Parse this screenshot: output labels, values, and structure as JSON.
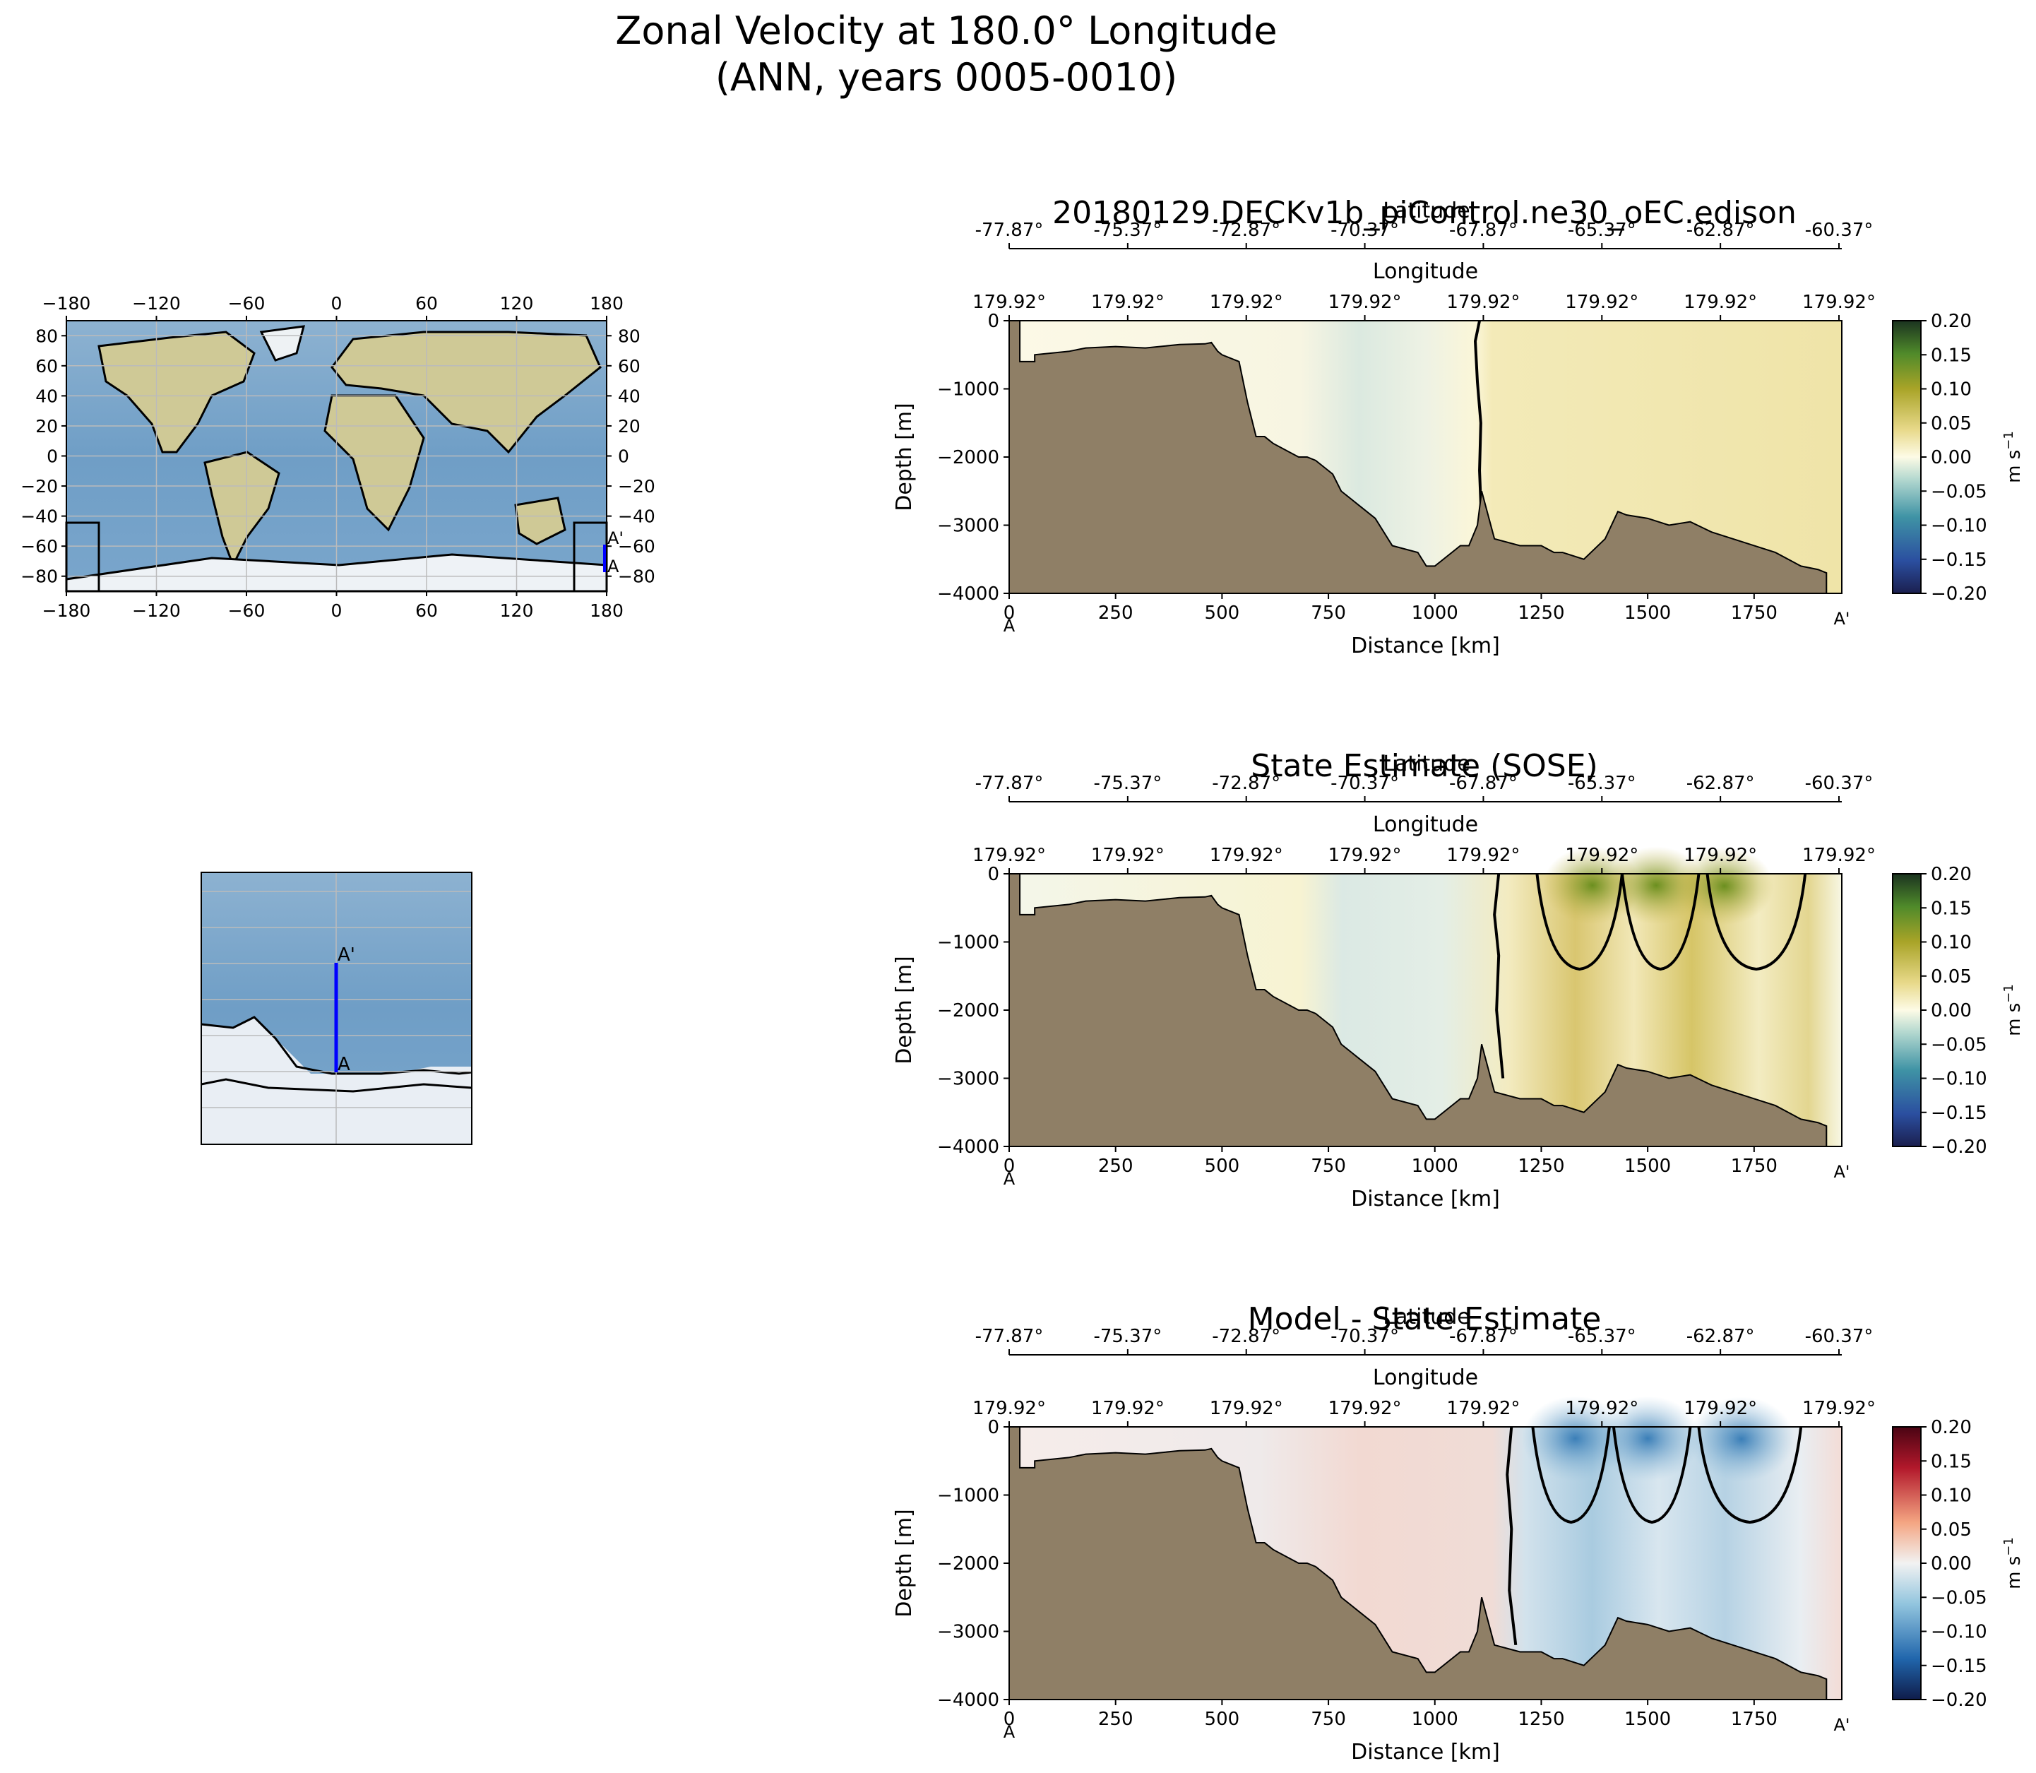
{
  "figure": {
    "title_line1": "Zonal Velocity at 180.0° Longitude",
    "title_line2": "(ANN, years 0005-0010)"
  },
  "colors": {
    "land": "#8f7f66",
    "ocean_map": "#7fa8c9",
    "ice": "#e9eef4",
    "continent": "#c9c49a",
    "section_line": "#0000ff",
    "contour": "#000000"
  },
  "chart_data": [
    {
      "type": "map",
      "name": "global-map",
      "x_ticks": [
        "−180",
        "−120",
        "−60",
        "0",
        "60",
        "120",
        "180"
      ],
      "y_ticks": [
        "80",
        "60",
        "40",
        "20",
        "0",
        "−20",
        "−40",
        "−60",
        "−80"
      ],
      "x_values": [
        -180,
        -120,
        -60,
        0,
        60,
        120,
        180
      ],
      "y_values": [
        80,
        60,
        40,
        20,
        0,
        -20,
        -40,
        -60,
        -80
      ],
      "xlim": [
        -180,
        180
      ],
      "ylim": [
        -90,
        90
      ],
      "endpoint_labels": [
        "A'",
        "A"
      ],
      "section_lon": 180,
      "section_lat": [
        -77.87,
        -60.37
      ]
    },
    {
      "type": "map",
      "name": "zoom-map",
      "endpoint_labels": [
        "A'",
        "A"
      ]
    },
    {
      "type": "heatmap",
      "name": "model-section",
      "title": "20180129.DECKv1b_piControl.ne30_oEC.edison",
      "lat_label": "Latitude",
      "lat_ticks": [
        "-77.87°",
        "-75.37°",
        "-72.87°",
        "-70.37°",
        "-67.87°",
        "-65.37°",
        "-62.87°",
        "-60.37°"
      ],
      "lon_label": "Longitude",
      "lon_ticks": [
        "179.92°",
        "179.92°",
        "179.92°",
        "179.92°",
        "179.92°",
        "179.92°",
        "179.92°",
        "179.92°"
      ],
      "xlabel": "Distance [km]",
      "ylabel": "Depth [m]",
      "x_ticks": [
        0,
        250,
        500,
        750,
        1000,
        1250,
        1500,
        1750
      ],
      "y_ticks": [
        0,
        -1000,
        -2000,
        -3000,
        -4000
      ],
      "y_tick_labels": [
        "0",
        "−1000",
        "−2000",
        "−3000",
        "−4000"
      ],
      "xlim": [
        0,
        1956
      ],
      "ylim": [
        -4000,
        0
      ],
      "endpoints": [
        "A",
        "A'"
      ],
      "colorbar": {
        "label": "m s",
        "label_exp": "−1",
        "ticks": [
          "0.20",
          "0.15",
          "0.10",
          "0.05",
          "0.00",
          "−0.05",
          "−0.10",
          "−0.15",
          "−0.20"
        ],
        "range": [
          -0.2,
          0.2
        ],
        "cmap": "delta"
      },
      "bathymetry": {
        "distance_km": [
          0,
          25,
          25,
          60,
          60,
          140,
          180,
          250,
          320,
          400,
          460,
          475,
          490,
          500,
          540,
          560,
          580,
          600,
          620,
          650,
          680,
          700,
          720,
          740,
          760,
          780,
          800,
          820,
          860,
          900,
          960,
          980,
          1000,
          1020,
          1060,
          1080,
          1100,
          1110,
          1140,
          1200,
          1250,
          1280,
          1300,
          1350,
          1400,
          1430,
          1450,
          1500,
          1550,
          1600,
          1650,
          1700,
          1750,
          1800,
          1860,
          1900,
          1920
        ],
        "depth_m": [
          0,
          0,
          -600,
          -600,
          -500,
          -450,
          -400,
          -380,
          -400,
          -350,
          -340,
          -320,
          -450,
          -500,
          -600,
          -1200,
          -1700,
          -1700,
          -1800,
          -1900,
          -2000,
          -2000,
          -2050,
          -2150,
          -2250,
          -2500,
          -2600,
          -2700,
          -2900,
          -3300,
          -3400,
          -3600,
          -3600,
          -3500,
          -3300,
          -3300,
          -3000,
          -2500,
          -3200,
          -3300,
          -3300,
          -3400,
          -3400,
          -3500,
          -3200,
          -2800,
          -2850,
          -2900,
          -3000,
          -2950,
          -3100,
          -3200,
          -3300,
          -3400,
          -3600,
          -3650,
          -3700
        ]
      }
    },
    {
      "type": "heatmap",
      "name": "obs-section",
      "title": "State Estimate (SOSE)",
      "lat_label": "Latitude",
      "lat_ticks": [
        "-77.87°",
        "-75.37°",
        "-72.87°",
        "-70.37°",
        "-67.87°",
        "-65.37°",
        "-62.87°",
        "-60.37°"
      ],
      "lon_label": "Longitude",
      "lon_ticks": [
        "179.92°",
        "179.92°",
        "179.92°",
        "179.92°",
        "179.92°",
        "179.92°",
        "179.92°",
        "179.92°"
      ],
      "xlabel": "Distance [km]",
      "ylabel": "Depth [m]",
      "x_ticks": [
        0,
        250,
        500,
        750,
        1000,
        1250,
        1500,
        1750
      ],
      "y_ticks": [
        0,
        -1000,
        -2000,
        -3000,
        -4000
      ],
      "y_tick_labels": [
        "0",
        "−1000",
        "−2000",
        "−3000",
        "−4000"
      ],
      "xlim": [
        0,
        1956
      ],
      "ylim": [
        -4000,
        0
      ],
      "endpoints": [
        "A",
        "A'"
      ],
      "colorbar": {
        "label": "m s",
        "label_exp": "−1",
        "ticks": [
          "0.20",
          "0.15",
          "0.10",
          "0.05",
          "0.00",
          "−0.05",
          "−0.10",
          "−0.15",
          "−0.20"
        ],
        "range": [
          -0.2,
          0.2
        ],
        "cmap": "delta"
      },
      "bathymetry": {
        "distance_km": [
          0,
          25,
          25,
          60,
          60,
          140,
          180,
          250,
          320,
          400,
          460,
          475,
          490,
          500,
          540,
          560,
          580,
          600,
          620,
          650,
          680,
          700,
          720,
          740,
          760,
          780,
          800,
          820,
          860,
          900,
          960,
          980,
          1000,
          1020,
          1060,
          1080,
          1100,
          1110,
          1140,
          1200,
          1250,
          1280,
          1300,
          1350,
          1400,
          1430,
          1450,
          1500,
          1550,
          1600,
          1650,
          1700,
          1750,
          1800,
          1860,
          1900,
          1920
        ],
        "depth_m": [
          0,
          0,
          -600,
          -600,
          -500,
          -450,
          -400,
          -380,
          -400,
          -350,
          -340,
          -320,
          -450,
          -500,
          -600,
          -1200,
          -1700,
          -1700,
          -1800,
          -1900,
          -2000,
          -2000,
          -2050,
          -2150,
          -2250,
          -2500,
          -2600,
          -2700,
          -2900,
          -3300,
          -3400,
          -3600,
          -3600,
          -3500,
          -3300,
          -3300,
          -3000,
          -2500,
          -3200,
          -3300,
          -3300,
          -3400,
          -3400,
          -3500,
          -3200,
          -2800,
          -2850,
          -2900,
          -3000,
          -2950,
          -3100,
          -3200,
          -3300,
          -3400,
          -3600,
          -3650,
          -3700
        ]
      }
    },
    {
      "type": "heatmap",
      "name": "diff-section",
      "title": "Model - State Estimate",
      "lat_label": "Latitude",
      "lat_ticks": [
        "-77.87°",
        "-75.37°",
        "-72.87°",
        "-70.37°",
        "-67.87°",
        "-65.37°",
        "-62.87°",
        "-60.37°"
      ],
      "lon_label": "Longitude",
      "lon_ticks": [
        "179.92°",
        "179.92°",
        "179.92°",
        "179.92°",
        "179.92°",
        "179.92°",
        "179.92°",
        "179.92°"
      ],
      "xlabel": "Distance [km]",
      "ylabel": "Depth [m]",
      "x_ticks": [
        0,
        250,
        500,
        750,
        1000,
        1250,
        1500,
        1750
      ],
      "y_ticks": [
        0,
        -1000,
        -2000,
        -3000,
        -4000
      ],
      "y_tick_labels": [
        "0",
        "−1000",
        "−2000",
        "−3000",
        "−4000"
      ],
      "xlim": [
        0,
        1956
      ],
      "ylim": [
        -4000,
        0
      ],
      "endpoints": [
        "A",
        "A'"
      ],
      "colorbar": {
        "label": "m s",
        "label_exp": "−1",
        "ticks": [
          "0.20",
          "0.15",
          "0.10",
          "0.05",
          "0.00",
          "−0.05",
          "−0.10",
          "−0.15",
          "−0.20"
        ],
        "range": [
          -0.2,
          0.2
        ],
        "cmap": "RdBu_r"
      },
      "bathymetry": {
        "distance_km": [
          0,
          25,
          25,
          60,
          60,
          140,
          180,
          250,
          320,
          400,
          460,
          475,
          490,
          500,
          540,
          560,
          580,
          600,
          620,
          650,
          680,
          700,
          720,
          740,
          760,
          780,
          800,
          820,
          860,
          900,
          960,
          980,
          1000,
          1020,
          1060,
          1080,
          1100,
          1110,
          1140,
          1200,
          1250,
          1280,
          1300,
          1350,
          1400,
          1430,
          1450,
          1500,
          1550,
          1600,
          1650,
          1700,
          1750,
          1800,
          1860,
          1900,
          1920
        ],
        "depth_m": [
          0,
          0,
          -600,
          -600,
          -500,
          -450,
          -400,
          -380,
          -400,
          -350,
          -340,
          -320,
          -450,
          -500,
          -600,
          -1200,
          -1700,
          -1700,
          -1800,
          -1900,
          -2000,
          -2000,
          -2050,
          -2150,
          -2250,
          -2500,
          -2600,
          -2700,
          -2900,
          -3300,
          -3400,
          -3600,
          -3600,
          -3500,
          -3300,
          -3300,
          -3000,
          -2500,
          -3200,
          -3300,
          -3300,
          -3400,
          -3400,
          -3500,
          -3200,
          -2800,
          -2850,
          -2900,
          -3000,
          -2950,
          -3100,
          -3200,
          -3300,
          -3400,
          -3600,
          -3650,
          -3700
        ]
      }
    }
  ]
}
